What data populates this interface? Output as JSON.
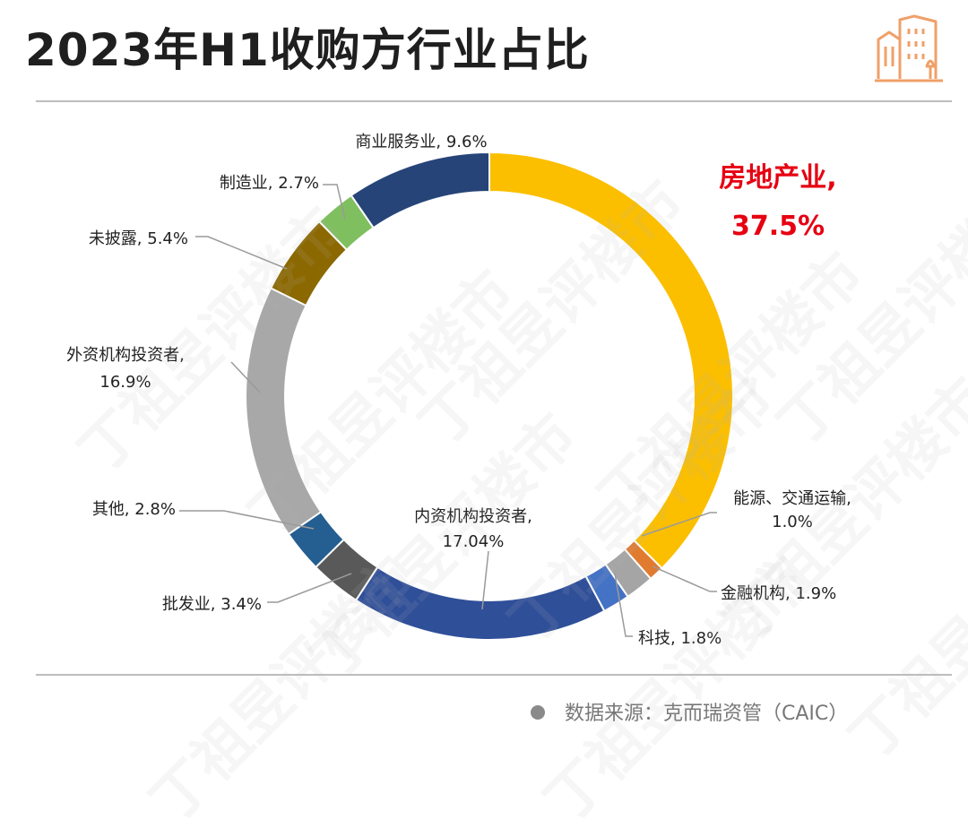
{
  "page": {
    "title": "2023年H1收购方行业占比",
    "source_text": "数据来源：克而瑞资管（CAIC）",
    "logo_icon": "buildings-icon",
    "accent_color": "#f0a068"
  },
  "chart_data": {
    "type": "pie",
    "variant": "donut",
    "title": "2023年H1收购方行业占比",
    "start_angle_deg": 0,
    "direction": "clockwise",
    "slices": [
      {
        "name": "房地产业",
        "value": 37.5,
        "label": "37.5%",
        "color": "#fbbf00",
        "highlight": true
      },
      {
        "name": "能源、交通运输",
        "value": 1.0,
        "label": "1.0%",
        "color": "#e07b30"
      },
      {
        "name": "金融机构",
        "value": 1.9,
        "label": "1.9%",
        "color": "#a5a5a5"
      },
      {
        "name": "科技",
        "value": 1.8,
        "label": "1.8%",
        "color": "#4472c4"
      },
      {
        "name": "内资机构投资者",
        "value": 17.04,
        "label": "17.04%",
        "color": "#2f4f99"
      },
      {
        "name": "批发业",
        "value": 3.4,
        "label": "3.4%",
        "color": "#595959"
      },
      {
        "name": "其他",
        "value": 2.8,
        "label": "2.8%",
        "color": "#255e91"
      },
      {
        "name": "外资机构投资者",
        "value": 16.9,
        "label": "16.9%",
        "color": "#a8a8a8"
      },
      {
        "name": "未披露",
        "value": 5.4,
        "label": "5.4%",
        "color": "#8b6800"
      },
      {
        "name": "制造业",
        "value": 2.7,
        "label": "2.7%",
        "color": "#7fbf5f"
      },
      {
        "name": "商业服务业",
        "value": 9.6,
        "label": "9.6%",
        "color": "#264478"
      }
    ],
    "legend": "none"
  },
  "watermark": {
    "text": "丁祖昱评楼市"
  }
}
